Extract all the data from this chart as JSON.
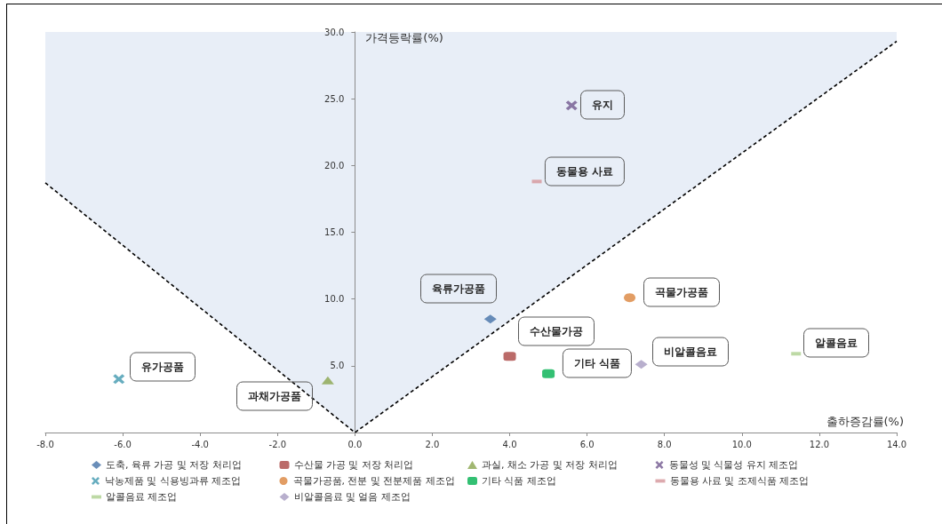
{
  "chart_data": {
    "type": "scatter",
    "xlabel": "출하증감률(%)",
    "ylabel": "가격등락률(%)",
    "xlim": [
      -8,
      14
    ],
    "ylim": [
      0,
      30
    ],
    "xticks": [
      {
        "value": -8,
        "label": "-8.0"
      },
      {
        "value": -6,
        "label": "-6.0"
      },
      {
        "value": -4,
        "label": "-4.0"
      },
      {
        "value": -2,
        "label": "-2.0"
      },
      {
        "value": 0,
        "label": "0.0"
      },
      {
        "value": 2,
        "label": "2.0"
      },
      {
        "value": 4,
        "label": "4.0"
      },
      {
        "value": 6,
        "label": "6.0"
      },
      {
        "value": 8,
        "label": "8.0"
      },
      {
        "value": 10,
        "label": "10.0"
      },
      {
        "value": 12,
        "label": "12.0"
      },
      {
        "value": 14,
        "label": "14.0"
      }
    ],
    "yticks": [
      {
        "value": 0,
        "label": null
      },
      {
        "value": 5,
        "label": "5.0"
      },
      {
        "value": 10,
        "label": "10.0"
      },
      {
        "value": 15,
        "label": "15.0"
      },
      {
        "value": 20,
        "label": "20.0"
      },
      {
        "value": 25,
        "label": "25.0"
      },
      {
        "value": 30,
        "label": "30.0"
      }
    ],
    "grid": false,
    "legend": "bottom",
    "series": [
      {
        "name": "도축, 육류 가공 및 저장 처리업",
        "color": "#4572a7",
        "marker": "diamond",
        "x": [
          3.5
        ],
        "values": [
          8.5
        ]
      },
      {
        "name": "수산물 가공 및 저장 처리업",
        "color": "#aa4643",
        "marker": "square",
        "x": [
          4.0
        ],
        "values": [
          5.7
        ]
      },
      {
        "name": "과실, 채소 가공 및 저장 처리업",
        "color": "#89a54e",
        "marker": "triangle",
        "x": [
          -0.7
        ],
        "values": [
          3.9
        ]
      },
      {
        "name": "동물성 및 식물성 유지 제조업",
        "color": "#71588f",
        "marker": "cross",
        "x": [
          5.6
        ],
        "values": [
          24.5
        ]
      },
      {
        "name": "낙농제품 및 식용빙과류 제조업",
        "color": "#4198af",
        "marker": "cross",
        "x": [
          -6.1
        ],
        "values": [
          4.0
        ]
      },
      {
        "name": "곡물가공품, 전분 및 전분제품 제조업",
        "color": "#db843d",
        "marker": "circle",
        "x": [
          7.1
        ],
        "values": [
          10.1
        ]
      },
      {
        "name": "기타 식품 제조업",
        "color": "#00b050",
        "marker": "square",
        "x": [
          5.0
        ],
        "values": [
          4.4
        ]
      },
      {
        "name": "동물용 사료 및 조제식품 제조업",
        "color": "#d4959a",
        "x": [
          4.7
        ],
        "values": [
          18.8
        ]
      },
      {
        "name": "알콜음료 제조업",
        "color": "#add08f",
        "x": [
          11.4
        ],
        "values": [
          5.9
        ]
      },
      {
        "name": "비알콜음료 및 얼음 제조업",
        "color": "#a69bc0",
        "marker": "diamond",
        "x": [
          7.4
        ],
        "values": [
          5.1
        ]
      },
      {
        "type": "line",
        "color": "#000000",
        "line_style": "dashed",
        "marker": "none",
        "x": [
          -8,
          0,
          14
        ],
        "values": [
          18.7,
          0,
          29.3
        ],
        "lower": [
          18.7,
          0,
          29.3
        ],
        "upper": [
          30,
          30,
          30
        ]
      }
    ],
    "annotations": [
      {
        "text": "육류가공품",
        "x": 3.5,
        "y": 8.5
      },
      {
        "text": "수산물가공",
        "x": 4.0,
        "y": 5.7
      },
      {
        "text": "과채가공품",
        "x": -0.7,
        "y": 3.9
      },
      {
        "text": "유지",
        "x": 5.6,
        "y": 24.5
      },
      {
        "text": "유가공품",
        "x": -6.1,
        "y": 4.0
      },
      {
        "text": "곡물가공품",
        "x": 7.1,
        "y": 10.1
      },
      {
        "text": "기타 식품",
        "x": 5.0,
        "y": 4.4
      },
      {
        "text": "동물용 사료",
        "x": 4.7,
        "y": 18.8
      },
      {
        "text": "알콜음료",
        "x": 11.4,
        "y": 5.9
      },
      {
        "text": "비알콜음료",
        "x": 7.4,
        "y": 5.1
      }
    ]
  }
}
